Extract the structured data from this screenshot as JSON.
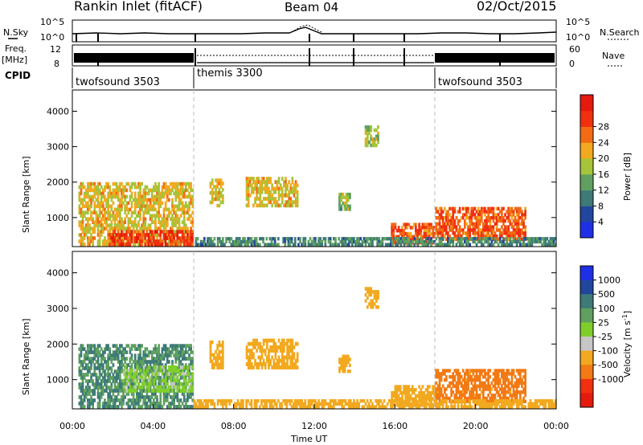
{
  "header": {
    "station": "Rankin Inlet (fitACF)",
    "beam": "Beam 04",
    "date": "02/Oct/2015"
  },
  "strips": {
    "noise_left_label": "N.Sky",
    "noise_right_label": "N.Search",
    "noise_ticks_left": [
      "10^5",
      "10^0"
    ],
    "noise_ticks_right": [
      "10^5",
      "10^0"
    ],
    "freq_label_top": "Freq.",
    "freq_label_unit": "[MHz]",
    "freq_ticks_left": [
      "12",
      "8"
    ],
    "nave_label": "Nave",
    "nave_ticks_right": [
      "60",
      "0"
    ],
    "cpid_label": "CPID",
    "cpid_segments": [
      {
        "name": "twofsound 3503",
        "start_h": 0,
        "end_h": 6
      },
      {
        "name": "themis 3300",
        "start_h": 6,
        "end_h": 18
      },
      {
        "name": "twofsound 3503",
        "start_h": 18,
        "end_h": 24
      }
    ]
  },
  "chart_data": [
    {
      "type": "heatmap",
      "title": "",
      "xlabel": "Time UT",
      "ylabel": "Slant Range [km]",
      "xlim": [
        0,
        24
      ],
      "ylim": [
        180,
        4600
      ],
      "xticks": [
        "00:00",
        "04:00",
        "08:00",
        "12:00",
        "16:00",
        "20:00",
        "00:00"
      ],
      "yticks": [
        1000,
        2000,
        3000,
        4000
      ],
      "colorbar_label": "Power [dB]",
      "colorbar_ticks": [
        4,
        8,
        12,
        16,
        20,
        24,
        28
      ],
      "colorbar_colors": [
        "#1f2fe6",
        "#22469e",
        "#3d7a78",
        "#5fa060",
        "#a5c43a",
        "#f2a91f",
        "#f26a14",
        "#f0300f",
        "#e41a0c"
      ],
      "regions": [
        {
          "t0": 0.3,
          "t1": 6.0,
          "r0": 200,
          "r1": 2000,
          "level": 20
        },
        {
          "t0": 1.8,
          "t1": 6.0,
          "r0": 200,
          "r1": 650,
          "level": 28
        },
        {
          "t0": 6.8,
          "t1": 7.5,
          "r0": 1300,
          "r1": 2100,
          "level": 20
        },
        {
          "t0": 8.6,
          "t1": 11.2,
          "r0": 1300,
          "r1": 2150,
          "level": 20
        },
        {
          "t0": 13.2,
          "t1": 13.8,
          "r0": 1200,
          "r1": 1700,
          "level": 16
        },
        {
          "t0": 14.5,
          "t1": 15.2,
          "r0": 3000,
          "r1": 3600,
          "level": 18
        },
        {
          "t0": 15.8,
          "t1": 18.0,
          "r0": 250,
          "r1": 850,
          "level": 26
        },
        {
          "t0": 18.0,
          "t1": 22.5,
          "r0": 350,
          "r1": 1300,
          "level": 26
        },
        {
          "t0": 6.0,
          "t1": 24.0,
          "r0": 200,
          "r1": 450,
          "level": 12
        }
      ]
    },
    {
      "type": "heatmap",
      "title": "",
      "xlabel": "Time UT",
      "ylabel": "Slant Range [km]",
      "xlim": [
        0,
        24
      ],
      "ylim": [
        180,
        4600
      ],
      "xticks": [
        "00:00",
        "04:00",
        "08:00",
        "12:00",
        "16:00",
        "20:00",
        "00:00"
      ],
      "yticks": [
        1000,
        2000,
        3000,
        4000
      ],
      "colorbar_label": "Velocity [m s^-1]",
      "colorbar_ticks": [
        1000,
        500,
        100,
        25,
        -25,
        -100,
        -500,
        -1000
      ],
      "colorbar_colors": [
        "#1f2fe6",
        "#22469e",
        "#3d7a78",
        "#5fa060",
        "#7fcf2a",
        "#c6c6c6",
        "#f2a91f",
        "#f27a14",
        "#f0300f",
        "#e41a0c"
      ],
      "regions": [
        {
          "t0": 0.3,
          "t1": 6.0,
          "r0": 200,
          "r1": 2000,
          "level": 100
        },
        {
          "t0": 2.5,
          "t1": 6.0,
          "r0": 650,
          "r1": 1400,
          "level": 0
        },
        {
          "t0": 6.8,
          "t1": 7.5,
          "r0": 1300,
          "r1": 2100,
          "level": -300
        },
        {
          "t0": 8.6,
          "t1": 11.2,
          "r0": 1300,
          "r1": 2150,
          "level": -300
        },
        {
          "t0": 13.2,
          "t1": 13.8,
          "r0": 1200,
          "r1": 1700,
          "level": -300
        },
        {
          "t0": 14.5,
          "t1": 15.2,
          "r0": 3000,
          "r1": 3600,
          "level": -300
        },
        {
          "t0": 15.8,
          "t1": 18.0,
          "r0": 250,
          "r1": 850,
          "level": -300
        },
        {
          "t0": 18.0,
          "t1": 22.5,
          "r0": 350,
          "r1": 1300,
          "level": -700
        },
        {
          "t0": 6.0,
          "t1": 24.0,
          "r0": 200,
          "r1": 450,
          "level": -300
        }
      ]
    }
  ]
}
